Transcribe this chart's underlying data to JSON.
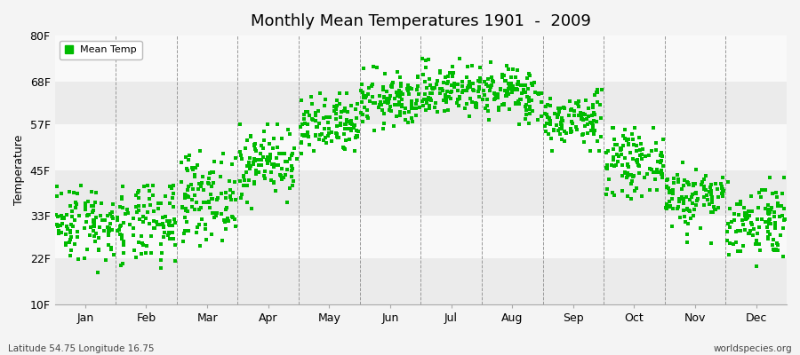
{
  "title": "Monthly Mean Temperatures 1901  -  2009",
  "ylabel": "Temperature",
  "xlabel_months": [
    "Jan",
    "Feb",
    "Mar",
    "Apr",
    "May",
    "Jun",
    "Jul",
    "Aug",
    "Sep",
    "Oct",
    "Nov",
    "Dec"
  ],
  "ytick_labels": [
    "10F",
    "22F",
    "33F",
    "45F",
    "57F",
    "68F",
    "80F"
  ],
  "ytick_values": [
    10,
    22,
    33,
    45,
    57,
    68,
    80
  ],
  "ylim": [
    10,
    80
  ],
  "dot_color": "#00bb00",
  "background_color": "#f4f4f4",
  "band_colors": [
    "#ebebeb",
    "#f9f9f9"
  ],
  "legend_label": "Mean Temp",
  "footer_left": "Latitude 54.75 Longitude 16.75",
  "footer_right": "worldspecies.org",
  "monthly_means": [
    31.5,
    30.5,
    38,
    47,
    56,
    63,
    66,
    65,
    58,
    47,
    38,
    32
  ],
  "monthly_stds": [
    5.0,
    5.5,
    5.5,
    4.5,
    4.0,
    3.5,
    3.5,
    3.5,
    3.5,
    4.0,
    4.0,
    5.0
  ],
  "monthly_mins": [
    13,
    12,
    22,
    33,
    46,
    54,
    58,
    57,
    50,
    37,
    26,
    20
  ],
  "monthly_maxs": [
    41,
    41,
    50,
    57,
    65,
    72,
    74,
    73,
    66,
    56,
    47,
    43
  ],
  "n_years": 109,
  "dot_size": 5,
  "dot_spread": 0.48
}
